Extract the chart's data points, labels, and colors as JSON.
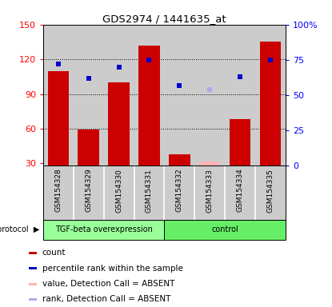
{
  "title": "GDS2974 / 1441635_at",
  "samples": [
    "GSM154328",
    "GSM154329",
    "GSM154330",
    "GSM154331",
    "GSM154332",
    "GSM154333",
    "GSM154334",
    "GSM154335"
  ],
  "bar_values": [
    110,
    59,
    100,
    132,
    38,
    null,
    68,
    135
  ],
  "bar_absent_values": [
    null,
    null,
    null,
    null,
    null,
    32,
    null,
    null
  ],
  "percentile_values": [
    72,
    62,
    70,
    75,
    57,
    null,
    63,
    75
  ],
  "percentile_absent_values": [
    null,
    null,
    null,
    null,
    null,
    54,
    null,
    null
  ],
  "bar_color": "#cc0000",
  "bar_absent_color": "#ffb3b3",
  "percentile_color": "#0000cc",
  "percentile_absent_color": "#aaaaee",
  "ylim_left": [
    28,
    150
  ],
  "ylim_right": [
    0,
    100
  ],
  "yticks_left": [
    30,
    60,
    90,
    120,
    150
  ],
  "yticks_right": [
    0,
    25,
    50,
    75,
    100
  ],
  "ytick_labels_right": [
    "0",
    "25",
    "50",
    "75",
    "100%"
  ],
  "groups": [
    {
      "label": "TGF-beta overexpression",
      "start": 0,
      "end": 4,
      "color": "#99ff99"
    },
    {
      "label": "control",
      "start": 4,
      "end": 8,
      "color": "#66ee66"
    }
  ],
  "protocol_label": "protocol",
  "background_color": "#ffffff",
  "tick_area_color": "#cccccc",
  "legend": [
    {
      "label": "count",
      "color": "#cc0000"
    },
    {
      "label": "percentile rank within the sample",
      "color": "#0000cc"
    },
    {
      "label": "value, Detection Call = ABSENT",
      "color": "#ffb3b3"
    },
    {
      "label": "rank, Detection Call = ABSENT",
      "color": "#aaaaee"
    }
  ]
}
